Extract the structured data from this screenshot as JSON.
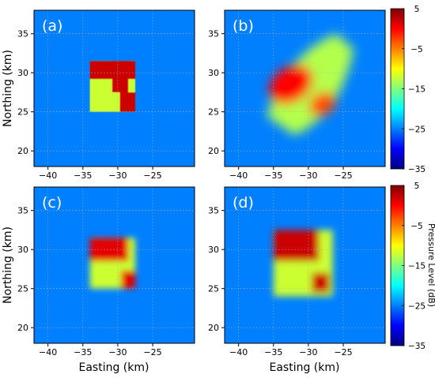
{
  "chart_data": {
    "type": "heatmap",
    "x_range": [
      -42,
      -19
    ],
    "y_range": [
      18,
      38
    ],
    "x_ticks": [
      -40,
      -35,
      -30,
      -25
    ],
    "y_ticks": [
      20,
      25,
      30,
      35
    ],
    "xlabel": "Easting (km)",
    "ylabel": "Northing (km)",
    "grid": true,
    "background_level_db": -25,
    "panels": [
      {
        "label": "(a)",
        "regions": [
          {
            "shape": "square",
            "x": [
              -34,
              -27.5
            ],
            "y": [
              25,
              31.5
            ],
            "level_db": -12
          },
          {
            "shape": "square",
            "x": [
              -34,
              -27.5
            ],
            "y": [
              29.2,
              31.5
            ],
            "level_db": 2
          },
          {
            "shape": "square",
            "x": [
              -30.8,
              -28.5
            ],
            "y": [
              27.5,
              31.5
            ],
            "level_db": 2
          },
          {
            "shape": "square",
            "x": [
              -29.7,
              -27.5
            ],
            "y": [
              25,
              27.5
            ],
            "level_db": 2
          }
        ]
      },
      {
        "label": "(b)",
        "regions": [
          {
            "shape": "curved-band",
            "level_db": -13
          },
          {
            "shape": "blob",
            "center": [
              -32.5,
              28.5
            ],
            "level_db": 0
          },
          {
            "shape": "blob",
            "center": [
              -28,
              26
            ],
            "level_db": -3
          }
        ]
      },
      {
        "label": "(c)",
        "regions": [
          {
            "shape": "square",
            "x": [
              -34,
              -27.5
            ],
            "y": [
              25,
              31.5
            ],
            "level_db": -12
          },
          {
            "shape": "square",
            "x": [
              -34,
              -28.5
            ],
            "y": [
              28.5,
              31.5
            ],
            "level_db": 1
          },
          {
            "shape": "square",
            "x": [
              -29.5,
              -27.5
            ],
            "y": [
              25,
              27.3
            ],
            "level_db": 1
          }
        ]
      },
      {
        "label": "(d)",
        "regions": [
          {
            "shape": "square",
            "x": [
              -35,
              -26.5
            ],
            "y": [
              24,
              32.5
            ],
            "level_db": -12
          },
          {
            "shape": "square",
            "x": [
              -35,
              -28.5
            ],
            "y": [
              28.5,
              32.5
            ],
            "level_db": 2
          },
          {
            "shape": "square",
            "x": [
              -29.5,
              -27
            ],
            "y": [
              24.5,
              27
            ],
            "level_db": 2
          }
        ]
      }
    ],
    "colorbar": {
      "min": -35,
      "max": 5,
      "ticks": [
        5,
        -5,
        -15,
        -25,
        -35
      ],
      "colormap": "jet",
      "label": "Pressure Level (dB)"
    }
  }
}
